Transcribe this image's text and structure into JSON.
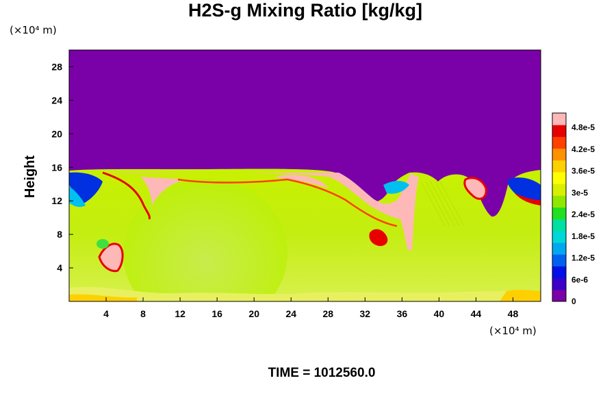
{
  "chart_data": {
    "type": "heatmap",
    "title": "H2S-g Mixing Ratio [kg/kg]",
    "ylabel": "Height",
    "x_unit": "(×10⁴ m)",
    "y_unit": "(×10⁴ m)",
    "xlim": [
      0,
      51
    ],
    "ylim": [
      0,
      30
    ],
    "x_ticks": [
      4,
      8,
      12,
      16,
      20,
      24,
      28,
      32,
      36,
      40,
      44,
      48
    ],
    "y_ticks": [
      4,
      8,
      12,
      16,
      20,
      24,
      28
    ],
    "colorbar": {
      "range": [
        0,
        5.2e-05
      ],
      "tick_values": [
        0,
        6e-06,
        1.2e-05,
        1.8e-05,
        2.4e-05,
        3e-05,
        3.6e-05,
        4.2e-05,
        4.8e-05
      ],
      "tick_labels": [
        "0",
        "6e-6",
        "1.2e-5",
        "1.8e-5",
        "2.4e-5",
        "3e-5",
        "3.6e-5",
        "4.2e-5",
        "4.8e-5"
      ],
      "colors": [
        "#7a00a8",
        "#3a00c8",
        "#0010e6",
        "#0060f0",
        "#00a8f0",
        "#00d8d8",
        "#00e0a0",
        "#20e020",
        "#90e800",
        "#d8f000",
        "#ffff00",
        "#ffd000",
        "#ff9000",
        "#ff4000",
        "#e80000",
        "#ffb8b8"
      ]
    },
    "field_description_levels": {
      "upper_region_above_height": 15.5,
      "upper_value": 0,
      "lower_region_typical_value": 3.3e-05
    },
    "time_label": "TIME = 1012560.0"
  },
  "colors": {
    "upper": "#7a00a8",
    "lime": "#c0f000",
    "yellow_green": "#d8f040",
    "pink": "#ffb8b8",
    "red": "#e80000",
    "orange": "#ff9000",
    "yellow": "#ffff00",
    "green": "#40e040",
    "blue": "#0030e0",
    "cyan": "#00c0f0"
  }
}
